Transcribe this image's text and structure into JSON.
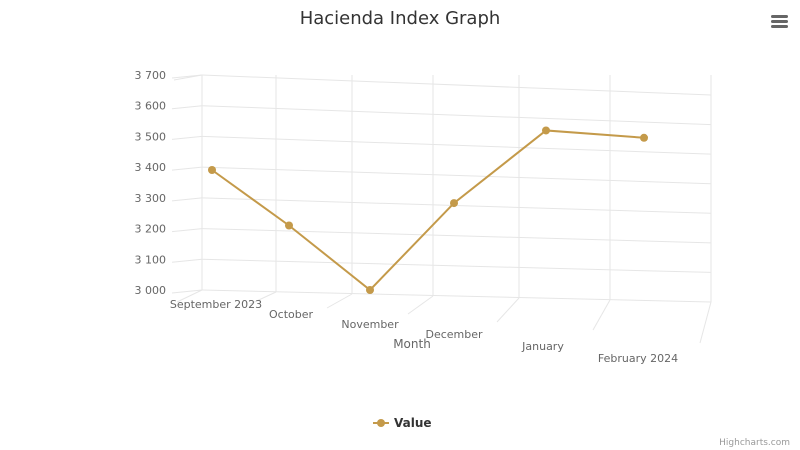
{
  "chart_data": {
    "type": "line",
    "title": "Hacienda Index Graph",
    "xlabel": "Month",
    "ylabel": "",
    "categories": [
      "September 2023",
      "October",
      "November",
      "December",
      "January",
      "February 2024"
    ],
    "yticks": [
      "3 000",
      "3 100",
      "3 200",
      "3 300",
      "3 400",
      "3 500",
      "3 600",
      "3 700"
    ],
    "ylim": [
      3000,
      3700
    ],
    "series": [
      {
        "name": "Value",
        "values": [
          3400,
          3215,
          3000,
          3295,
          3540,
          3520
        ]
      }
    ],
    "grid": true,
    "legend_position": "bottom-center",
    "is_3d": true
  },
  "colors": {
    "series": "#c49a4a",
    "grid": "#e6e6e6",
    "text": "#666666",
    "title": "#333333"
  },
  "menu": {
    "icon": "hamburger-menu-icon"
  },
  "credits": "Highcharts.com"
}
